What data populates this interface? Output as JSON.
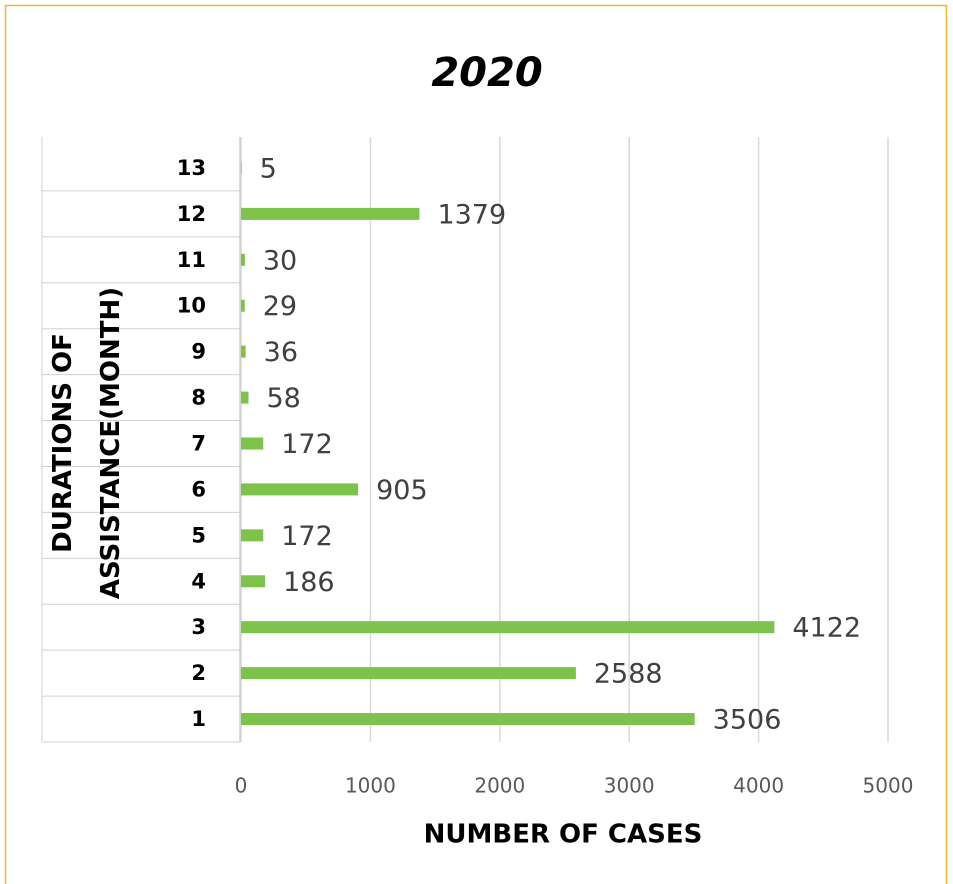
{
  "chart_data": {
    "type": "bar",
    "orientation": "horizontal",
    "title": "2020",
    "x_label": "NUMBER OF CASES",
    "y_label": "DURATIONS OF ASSISTANCE(MONTH)",
    "categories": [
      "1",
      "2",
      "3",
      "4",
      "5",
      "6",
      "7",
      "8",
      "9",
      "10",
      "11",
      "12",
      "13"
    ],
    "values": [
      3506,
      2588,
      4122,
      186,
      172,
      905,
      172,
      58,
      36,
      29,
      30,
      1379,
      5
    ],
    "color": "#7dc24b",
    "xlim": [
      0,
      5000
    ],
    "xticks": [
      0,
      1000,
      2000,
      3000,
      4000,
      5000
    ],
    "grid": true
  }
}
